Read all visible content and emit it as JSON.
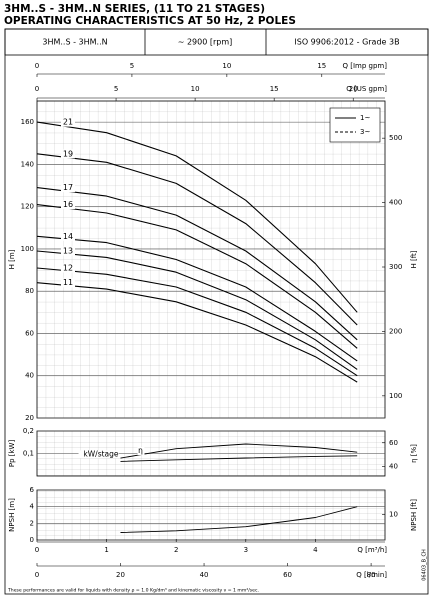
{
  "title": "3HM..S - 3HM..N SERIES, (11 TO 21 STAGES)",
  "subtitle": "OPERATING CHARACTERISTICS AT 50 Hz, 2 POLES",
  "header": {
    "model": "3HM..S - 3HM..N",
    "speed": "~ 2900 [rpm]",
    "standard": "ISO 9906:2012 - Grade 3B"
  },
  "footnote": "These performances are valid for liquids with density ρ = 1.0 Kg/dm³ and kinematic viscosity ν = 1 mm²/sec.",
  "code": "06403_B_CH",
  "chart_data": [
    {
      "type": "line",
      "ylabel": "H [m]",
      "y2label": "H [ft]",
      "xlim": [
        0,
        5
      ],
      "ylim": [
        20,
        170
      ],
      "yticks": [
        20,
        40,
        60,
        80,
        100,
        120,
        140,
        160
      ],
      "y2lim": [
        65.6,
        557.7
      ],
      "y2ticks": [
        100,
        200,
        300,
        400,
        500
      ],
      "grid": true,
      "legend": [
        "1~",
        "3~"
      ],
      "x_axes": [
        {
          "label": "Q [Imp gpm]",
          "xlim": [
            0,
            18.33
          ],
          "xticks": [
            0,
            5,
            10,
            15
          ]
        },
        {
          "label": "Q [US gpm]",
          "xlim": [
            0,
            22.01
          ],
          "xticks": [
            0,
            5,
            10,
            15,
            20
          ]
        }
      ],
      "x": [
        0,
        1,
        2,
        3,
        4,
        4.6
      ],
      "series": [
        {
          "name": "21",
          "color": "#000000",
          "values": [
            160,
            155,
            144,
            123,
            93,
            70
          ]
        },
        {
          "name": "19",
          "color": "#000000",
          "values": [
            145,
            141,
            131,
            112,
            84,
            64
          ]
        },
        {
          "name": "17",
          "color": "#000000",
          "values": [
            129,
            125,
            116,
            99,
            75,
            57
          ]
        },
        {
          "name": "16",
          "color": "#000000",
          "values": [
            121,
            117,
            109,
            93,
            70,
            53
          ]
        },
        {
          "name": "14",
          "color": "#000000",
          "values": [
            106,
            103,
            95,
            82,
            61,
            47
          ]
        },
        {
          "name": "13",
          "color": "#000000",
          "values": [
            99,
            96,
            89,
            76,
            57,
            43
          ]
        },
        {
          "name": "12",
          "color": "#000000",
          "values": [
            91,
            88,
            82,
            70,
            53,
            40
          ]
        },
        {
          "name": "11",
          "color": "#000000",
          "values": [
            84,
            81,
            75,
            64,
            49,
            37
          ]
        }
      ]
    },
    {
      "type": "line",
      "ylabel": "Pp [kW]",
      "y2label": "η [%]",
      "xlim": [
        0,
        5
      ],
      "ylim": [
        0,
        0.2
      ],
      "yticks": [
        {
          "value": 0.1,
          "label": "0,1"
        },
        {
          "value": 0.2,
          "label": "0,2"
        }
      ],
      "y2lim": [
        31.8,
        70
      ],
      "y2ticks": [
        40,
        60
      ],
      "grid": true,
      "x": [
        1.2,
        2,
        3,
        4,
        4.6
      ],
      "series": [
        {
          "name": "kW/stage",
          "color": "#000000",
          "values": [
            0.065,
            0.072,
            0.08,
            0.087,
            0.09
          ]
        },
        {
          "name": "η",
          "color": "#000000",
          "axis": "y2",
          "values": [
            47,
            55,
            59,
            56,
            52
          ]
        }
      ]
    },
    {
      "type": "line",
      "ylabel": "NPSH [m]",
      "y2label": "NPSH [ft]",
      "xlim": [
        0,
        5
      ],
      "ylim": [
        0,
        6
      ],
      "yticks": [
        0,
        2,
        4,
        6
      ],
      "y2lim": [
        0,
        19.7
      ],
      "y2ticks": [
        10
      ],
      "grid": true,
      "x_axes": [
        {
          "label": "Q [m³/h]",
          "xlim": [
            0,
            5
          ],
          "xticks": [
            0,
            1,
            2,
            3,
            4
          ]
        },
        {
          "label": "Q [l/min]",
          "xlim": [
            0,
            83.33
          ],
          "xticks": [
            0,
            20,
            40,
            60,
            80
          ]
        }
      ],
      "x": [
        1.2,
        2,
        3,
        4,
        4.6
      ],
      "series": [
        {
          "name": "NPSH",
          "color": "#000000",
          "values": [
            0.9,
            1.1,
            1.6,
            2.7,
            4.0
          ]
        }
      ]
    }
  ]
}
